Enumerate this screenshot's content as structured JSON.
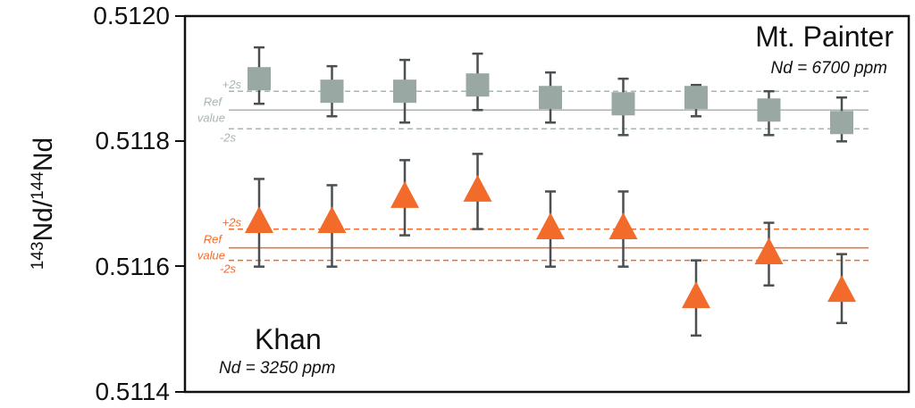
{
  "chart_data": {
    "type": "scatter",
    "title": "",
    "xlabel": "",
    "ylabel": {
      "base_pre": "143",
      "mid": "Nd/",
      "base_post": "144",
      "end": "Nd"
    },
    "ylim": [
      0.5114,
      0.512
    ],
    "yticks": [
      "0.5114",
      "0.5116",
      "0.5118",
      "0.5120"
    ],
    "grid": false,
    "series": [
      {
        "name": "Mt. Painter",
        "note": "Nd = 6700 ppm",
        "marker": "square",
        "color": "#9aa8a4",
        "ref_color": "#a9b5b1",
        "x": [
          1,
          2,
          3,
          4,
          5,
          6,
          7,
          8,
          9
        ],
        "values": [
          0.5119,
          0.51188,
          0.51188,
          0.51189,
          0.51187,
          0.51186,
          0.51187,
          0.51185,
          0.51183
        ],
        "err_high": [
          0.51195,
          0.51192,
          0.51193,
          0.51194,
          0.51191,
          0.5119,
          0.51189,
          0.51188,
          0.51187
        ],
        "err_low": [
          0.51186,
          0.51184,
          0.51183,
          0.51185,
          0.51183,
          0.51181,
          0.51184,
          0.51181,
          0.5118
        ],
        "ref_value": 0.51185,
        "plus_2s": 0.51188,
        "minus_2s": 0.51182,
        "labels": {
          "plus": "+2s",
          "ref1": "Ref",
          "ref2": "value",
          "minus": "-2s"
        }
      },
      {
        "name": "Khan",
        "note": "Nd = 3250 ppm",
        "marker": "triangle",
        "color": "#f26b2a",
        "ref_color": "#f26b2a",
        "x": [
          1,
          2,
          3,
          4,
          5,
          6,
          7,
          8,
          9
        ],
        "values": [
          0.51167,
          0.51167,
          0.51171,
          0.51172,
          0.51166,
          0.51166,
          0.51155,
          0.51162,
          0.51156
        ],
        "err_high": [
          0.51174,
          0.51173,
          0.51177,
          0.51178,
          0.51172,
          0.51172,
          0.51161,
          0.51167,
          0.51162
        ],
        "err_low": [
          0.5116,
          0.5116,
          0.51165,
          0.51166,
          0.5116,
          0.5116,
          0.51149,
          0.51157,
          0.51151
        ],
        "ref_value": 0.51163,
        "plus_2s": 0.51166,
        "minus_2s": 0.51161,
        "labels": {
          "plus": "+2s",
          "ref1": "Ref",
          "ref2": "value",
          "minus": "-2s"
        }
      }
    ]
  }
}
